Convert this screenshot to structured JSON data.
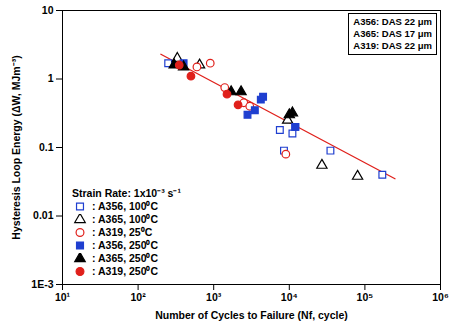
{
  "chart_data": {
    "type": "scatter",
    "x_label": "Number of Cycles to Failure (Nf, cycle)",
    "y_label": "Hysteresis Loop Energy (ΔW, MJm⁻³)",
    "log": true,
    "grid": false,
    "xlim": [
      10,
      1000000
    ],
    "xticks": [
      {
        "value": 10,
        "label": "10¹"
      },
      {
        "value": 100,
        "label": "10²"
      },
      {
        "value": 1000,
        "label": "10³"
      },
      {
        "value": 10000,
        "label": "10⁴"
      },
      {
        "value": 100000,
        "label": "10⁵"
      },
      {
        "value": 1000000,
        "label": "10⁶"
      }
    ],
    "ylim": [
      0.001,
      10
    ],
    "yticks": [
      {
        "value": 0.001,
        "label": "1E-3"
      },
      0.01,
      0.1,
      1,
      10
    ],
    "legend": "lower left",
    "legend_title": "Strain Rate: 1x10⁻³ s⁻¹",
    "annotations": [
      "A356: DAS 22 μm",
      "A365: DAS 17 μm",
      "A319: DAS 22 μm"
    ],
    "series": [
      {
        "name": ": A356, 100⁰C",
        "color": "#1f3fd0",
        "marker": "open_square",
        "x": [
          250,
          7500,
          8500,
          11000,
          12000,
          35000,
          170000
        ],
        "values": [
          1.7,
          0.18,
          0.09,
          0.16,
          0.2,
          0.09,
          0.04
        ]
      },
      {
        "name": ": A365, 100⁰C",
        "color": "#000000",
        "marker": "open_triangle",
        "x": [
          330,
          650,
          9500,
          27000,
          80000
        ],
        "values": [
          2.0,
          1.6,
          0.25,
          0.055,
          0.038
        ]
      },
      {
        "name": ": A319, 25⁰C",
        "color": "#e0201b",
        "marker": "open_circle",
        "x": [
          600,
          900,
          1400,
          2500,
          3000,
          9000
        ],
        "values": [
          1.5,
          1.7,
          0.75,
          0.45,
          0.4,
          0.08
        ]
      },
      {
        "name": ": A356, 250⁰C",
        "color": "#1f3fd0",
        "marker": "square",
        "x": [
          400,
          2800,
          3500,
          4200,
          4500,
          12000
        ],
        "values": [
          1.7,
          0.3,
          0.35,
          0.5,
          0.55,
          0.2
        ]
      },
      {
        "name": ": A365, 250⁰C",
        "color": "#000000",
        "marker": "triangle",
        "x": [
          300,
          400,
          1700,
          2300,
          10000,
          11000
        ],
        "values": [
          1.6,
          1.5,
          0.65,
          0.65,
          0.3,
          0.32
        ]
      },
      {
        "name": ": A319, 250⁰C",
        "color": "#e0201b",
        "marker": "circle",
        "x": [
          350,
          500,
          1500,
          2100
        ],
        "values": [
          1.6,
          1.1,
          0.6,
          0.42
        ]
      }
    ],
    "fit_line": {
      "color": "#e0201b",
      "line_style": "solid",
      "x": [
        200,
        250000
      ],
      "values": [
        2.3,
        0.035
      ]
    }
  }
}
